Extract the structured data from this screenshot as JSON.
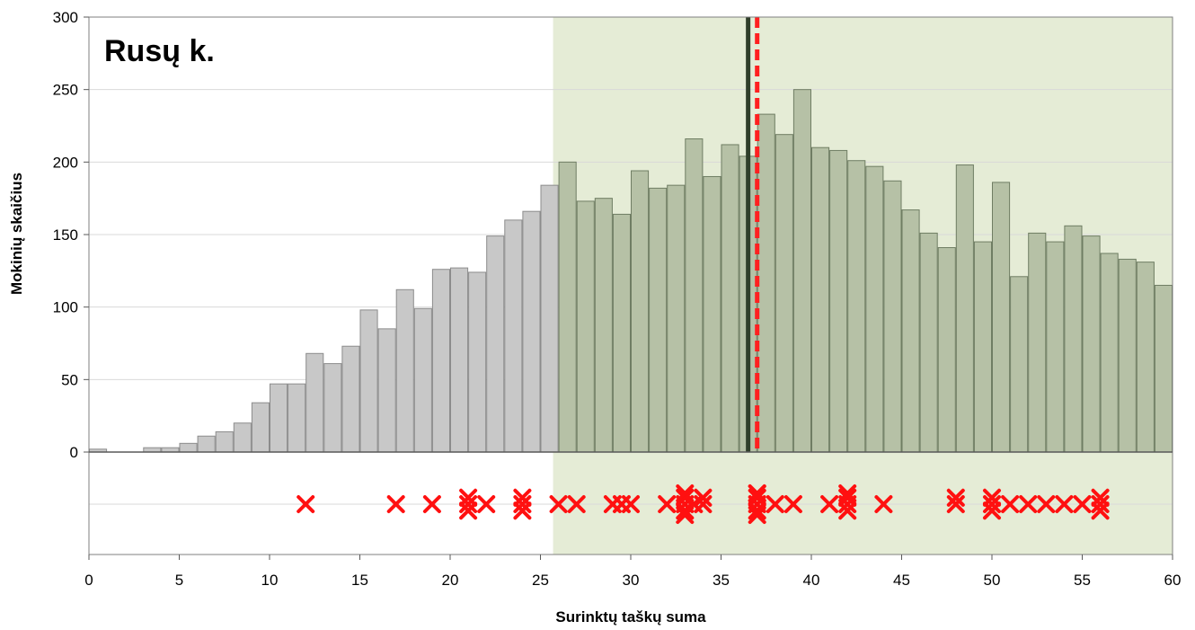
{
  "chart_data": {
    "type": "bar",
    "title": "Rusų k.",
    "xlabel": "Surinktų taškų suma",
    "ylabel": "Mokinių skaičius",
    "xlim": [
      0,
      60
    ],
    "ylim": [
      0,
      300
    ],
    "x_ticks": [
      "0",
      "5",
      "10",
      "15",
      "20",
      "25",
      "30",
      "35",
      "40",
      "45",
      "50",
      "55",
      "60"
    ],
    "y_ticks": [
      "0",
      "50",
      "100",
      "150",
      "200",
      "250",
      "300"
    ],
    "grid": true,
    "pass_threshold": 25.7,
    "mean_line": 36.5,
    "median_line": 37,
    "x": [
      0,
      1,
      2,
      3,
      4,
      5,
      6,
      7,
      8,
      9,
      10,
      11,
      12,
      13,
      14,
      15,
      16,
      17,
      18,
      19,
      20,
      21,
      22,
      23,
      24,
      25,
      26,
      27,
      28,
      29,
      30,
      31,
      32,
      33,
      34,
      35,
      36,
      37,
      38,
      39,
      40,
      41,
      42,
      43,
      44,
      45,
      46,
      47,
      48,
      49,
      50,
      51,
      52,
      53,
      54,
      55,
      56,
      57,
      58,
      59
    ],
    "values": [
      2,
      0,
      0,
      3,
      3,
      6,
      11,
      14,
      20,
      34,
      47,
      47,
      68,
      61,
      73,
      98,
      85,
      112,
      99,
      126,
      127,
      124,
      149,
      160,
      166,
      184,
      200,
      173,
      175,
      164,
      194,
      182,
      184,
      216,
      190,
      212,
      204,
      233,
      219,
      250,
      210,
      208,
      201,
      197,
      187,
      167,
      151,
      141,
      198,
      145,
      186,
      121,
      151,
      145,
      156,
      149,
      137,
      133,
      131,
      115
    ],
    "extra_bar": {
      "x": 60,
      "value": 119
    },
    "school_scores": [
      12,
      17,
      19,
      21,
      21,
      21,
      22,
      24,
      24,
      24,
      26,
      27,
      29,
      29.5,
      30,
      32,
      33,
      33,
      33,
      33,
      33,
      33.5,
      34,
      34,
      37,
      37,
      37,
      37,
      37,
      37,
      38,
      39,
      41,
      42,
      42,
      42,
      42,
      44,
      48,
      48,
      50,
      50,
      50,
      51,
      52,
      53,
      54,
      55,
      56,
      56,
      56
    ]
  },
  "colors": {
    "fail_bar": "#c8c8c8",
    "pass_bar": "#b6c1a6",
    "pass_bar_border": "#6f7d63",
    "pass_region": "#e5ecd6",
    "mean_line": "#2f3e2a",
    "median_line": "#ff2020",
    "marker": "#ff1010",
    "grid": "#d9d9d9"
  }
}
